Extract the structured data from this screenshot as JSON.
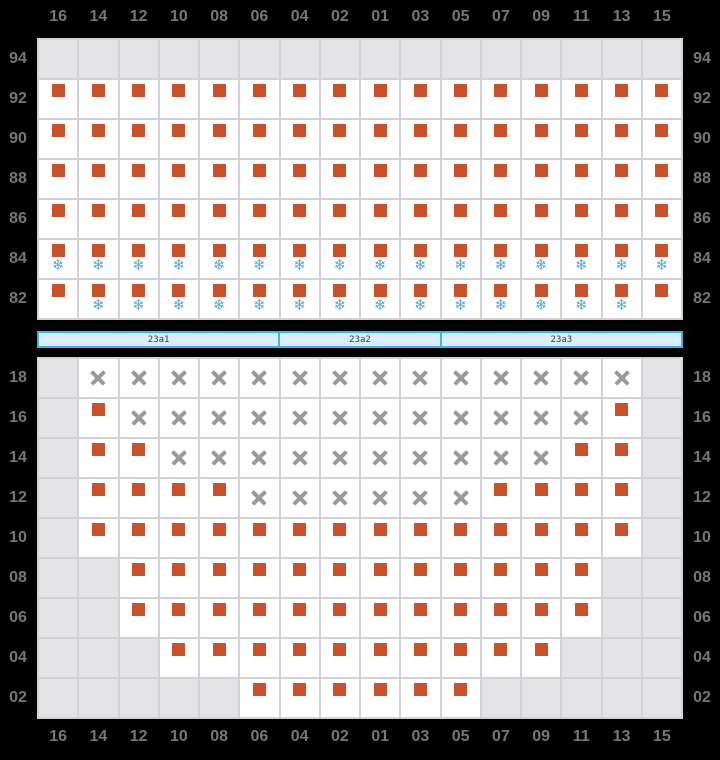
{
  "columns": [
    "16",
    "14",
    "12",
    "10",
    "08",
    "06",
    "04",
    "02",
    "01",
    "03",
    "05",
    "07",
    "09",
    "11",
    "13",
    "15"
  ],
  "symbols": {
    "snowflake": "❄"
  },
  "colors": {
    "background": "#000000",
    "label": "#76767b",
    "grid_line": "#d2d2d6",
    "cell_available": "#ffffff",
    "cell_unavailable": "#e4e4e7",
    "seat_square": "#c9522a",
    "snowflake": "#58a5da",
    "cross": "#9a9a9a",
    "bar_fill": "#d9eefb",
    "bar_border": "#40b4e8",
    "bar_text": "#3a3a3a"
  },
  "divider": {
    "segments": [
      {
        "label": "23a1",
        "span": 6
      },
      {
        "label": "23a2",
        "span": 4
      },
      {
        "label": "23a3",
        "span": 6
      }
    ]
  },
  "top_section": {
    "rows": [
      {
        "label": "94",
        "cells": [
          "u",
          "u",
          "u",
          "u",
          "u",
          "u",
          "u",
          "u",
          "u",
          "u",
          "u",
          "u",
          "u",
          "u",
          "u",
          "u"
        ]
      },
      {
        "label": "92",
        "cells": [
          "s",
          "s",
          "s",
          "s",
          "s",
          "s",
          "s",
          "s",
          "s",
          "s",
          "s",
          "s",
          "s",
          "s",
          "s",
          "s"
        ]
      },
      {
        "label": "90",
        "cells": [
          "s",
          "s",
          "s",
          "s",
          "s",
          "s",
          "s",
          "s",
          "s",
          "s",
          "s",
          "s",
          "s",
          "s",
          "s",
          "s"
        ]
      },
      {
        "label": "88",
        "cells": [
          "s",
          "s",
          "s",
          "s",
          "s",
          "s",
          "s",
          "s",
          "s",
          "s",
          "s",
          "s",
          "s",
          "s",
          "s",
          "s"
        ]
      },
      {
        "label": "86",
        "cells": [
          "s",
          "s",
          "s",
          "s",
          "s",
          "s",
          "s",
          "s",
          "s",
          "s",
          "s",
          "s",
          "s",
          "s",
          "s",
          "s"
        ]
      },
      {
        "label": "84",
        "cells": [
          "sf",
          "sf",
          "sf",
          "sf",
          "sf",
          "sf",
          "sf",
          "sf",
          "sf",
          "sf",
          "sf",
          "sf",
          "sf",
          "sf",
          "sf",
          "sf"
        ]
      },
      {
        "label": "82",
        "cells": [
          "s",
          "sf",
          "sf",
          "sf",
          "sf",
          "sf",
          "sf",
          "sf",
          "sf",
          "sf",
          "sf",
          "sf",
          "sf",
          "sf",
          "sf",
          "s"
        ]
      }
    ]
  },
  "bottom_section": {
    "rows": [
      {
        "label": "18",
        "cells": [
          "u",
          "x",
          "x",
          "x",
          "x",
          "x",
          "x",
          "x",
          "x",
          "x",
          "x",
          "x",
          "x",
          "x",
          "x",
          "u"
        ]
      },
      {
        "label": "16",
        "cells": [
          "u",
          "s",
          "x",
          "x",
          "x",
          "x",
          "x",
          "x",
          "x",
          "x",
          "x",
          "x",
          "x",
          "x",
          "s",
          "u"
        ]
      },
      {
        "label": "14",
        "cells": [
          "u",
          "s",
          "s",
          "x",
          "x",
          "x",
          "x",
          "x",
          "x",
          "x",
          "x",
          "x",
          "x",
          "s",
          "s",
          "u"
        ]
      },
      {
        "label": "12",
        "cells": [
          "u",
          "s",
          "s",
          "s",
          "s",
          "x",
          "x",
          "x",
          "x",
          "x",
          "x",
          "s",
          "s",
          "s",
          "s",
          "u"
        ]
      },
      {
        "label": "10",
        "cells": [
          "u",
          "s",
          "s",
          "s",
          "s",
          "s",
          "s",
          "s",
          "s",
          "s",
          "s",
          "s",
          "s",
          "s",
          "s",
          "u"
        ]
      },
      {
        "label": "08",
        "cells": [
          "u",
          "u",
          "s",
          "s",
          "s",
          "s",
          "s",
          "s",
          "s",
          "s",
          "s",
          "s",
          "s",
          "s",
          "u",
          "u"
        ]
      },
      {
        "label": "06",
        "cells": [
          "u",
          "u",
          "s",
          "s",
          "s",
          "s",
          "s",
          "s",
          "s",
          "s",
          "s",
          "s",
          "s",
          "s",
          "u",
          "u"
        ]
      },
      {
        "label": "04",
        "cells": [
          "u",
          "u",
          "u",
          "s",
          "s",
          "s",
          "s",
          "s",
          "s",
          "s",
          "s",
          "s",
          "s",
          "u",
          "u",
          "u"
        ]
      },
      {
        "label": "02",
        "cells": [
          "u",
          "u",
          "u",
          "u",
          "u",
          "s",
          "s",
          "s",
          "s",
          "s",
          "s",
          "u",
          "u",
          "u",
          "u",
          "u"
        ]
      }
    ]
  }
}
